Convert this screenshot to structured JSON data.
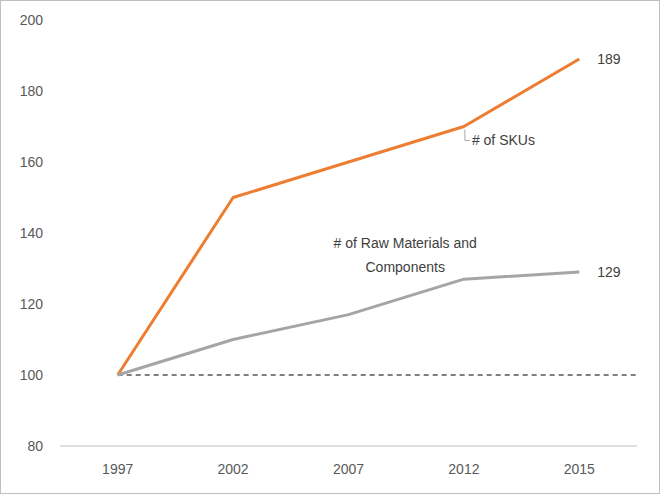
{
  "chart_data": {
    "type": "line",
    "categories": [
      "1997",
      "2002",
      "2007",
      "2012",
      "2015"
    ],
    "series": [
      {
        "name": "# of SKUs",
        "color": "#ed7d31",
        "values": [
          100,
          150,
          160,
          170,
          189
        ],
        "value_labels": [
          null,
          null,
          null,
          null,
          "189"
        ]
      },
      {
        "name": "# of Raw Materials and Components",
        "color": "#a5a5a5",
        "values": [
          100,
          110,
          117,
          127,
          129
        ],
        "value_labels": [
          null,
          null,
          null,
          null,
          "129"
        ]
      }
    ],
    "ylim": [
      80,
      200
    ],
    "yticks": [
      80,
      100,
      120,
      140,
      160,
      180,
      200
    ],
    "grid": false,
    "reference_lines": [
      {
        "value": 100,
        "line_style": "dashed",
        "color": "#000000"
      }
    ]
  }
}
